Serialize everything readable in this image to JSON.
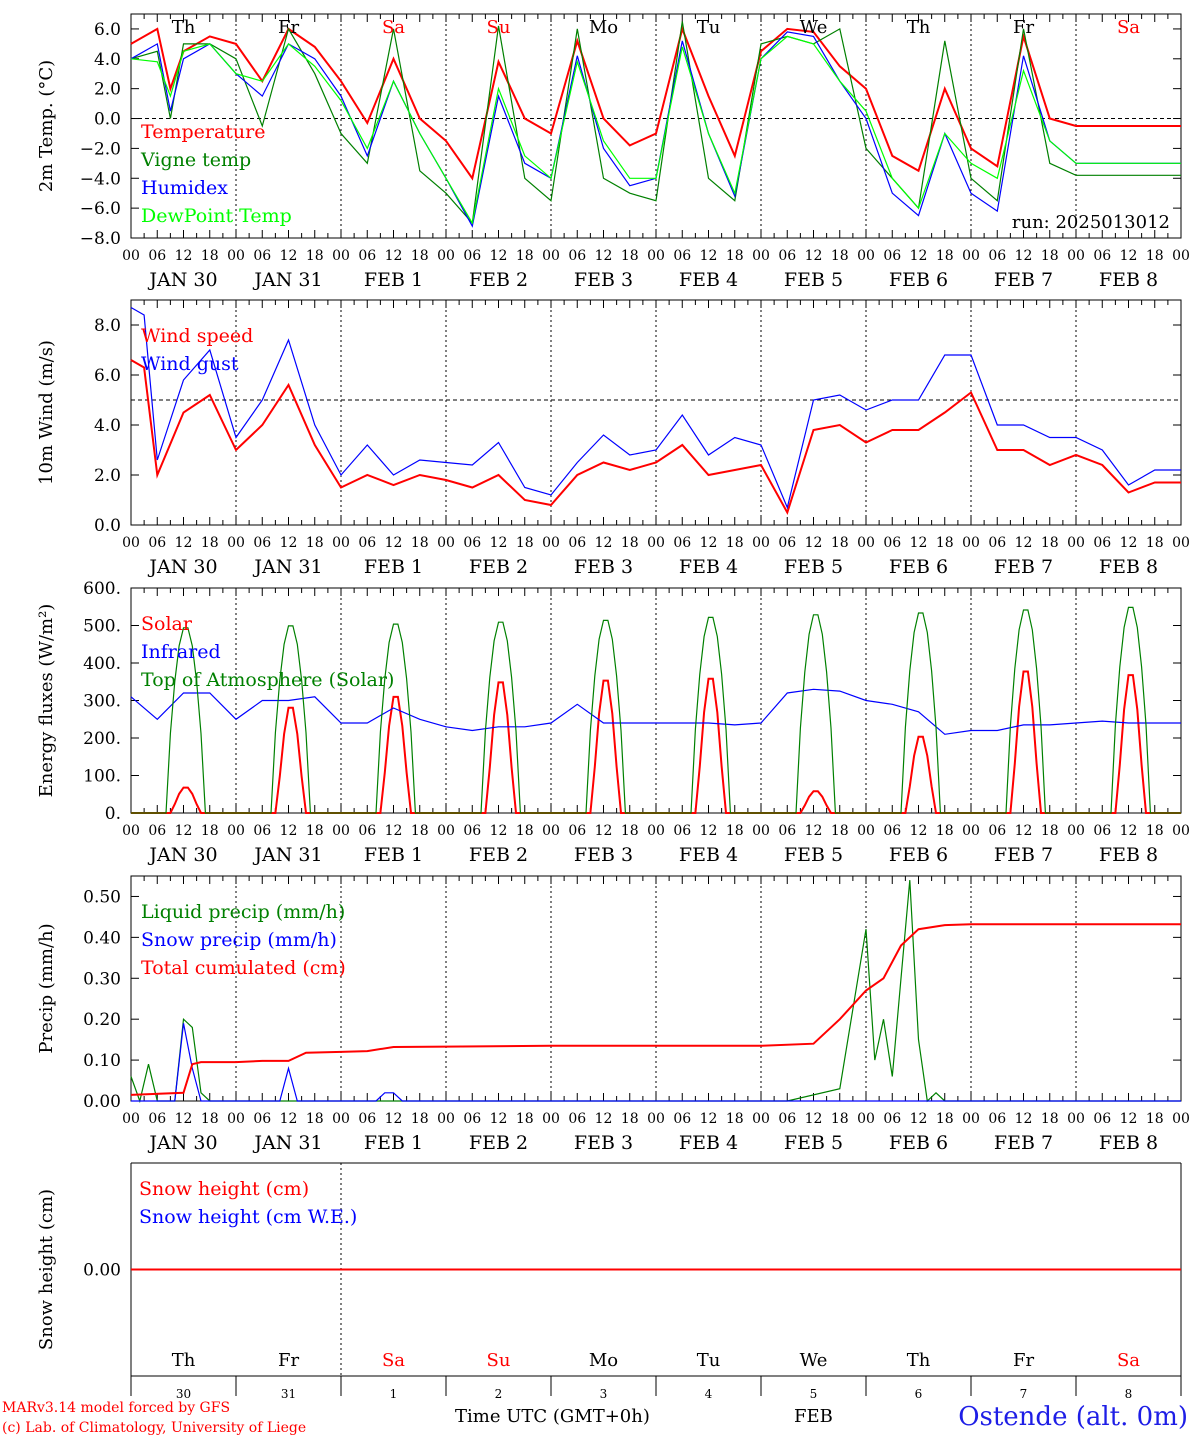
{
  "days": [
    "Th",
    "Fr",
    "Sa",
    "Su",
    "Mo",
    "Tu",
    "We",
    "Th",
    "Fr",
    "Sa"
  ],
  "weekend_flags": [
    false,
    false,
    true,
    true,
    false,
    false,
    false,
    false,
    false,
    true
  ],
  "date_labels": [
    "JAN 30",
    "JAN 31",
    "FEB  1",
    "FEB  2",
    "FEB  3",
    "FEB  4",
    "FEB  5",
    "FEB  6",
    "FEB  7",
    "FEB  8"
  ],
  "day_numbers": [
    "30",
    "31",
    "1",
    "2",
    "3",
    "4",
    "5",
    "6",
    "7",
    "8"
  ],
  "hour_ticks": [
    "00",
    "06",
    "12",
    "18"
  ],
  "end_tick": "00",
  "footer": {
    "credit_line1": "MARv3.14 model forced by GFS",
    "credit_line2": "(c) Lab. of Climatology, University of Liege",
    "time_label": "Time UTC (GMT+0h)",
    "month_label": "FEB",
    "station": "Ostende (alt. 0m)"
  },
  "chart_data": [
    {
      "type": "line",
      "ylabel": "2m Temp. (°C)",
      "ylim": [
        -8,
        7
      ],
      "yticks": [
        "6.0",
        "4.0",
        "2.0",
        "0.0",
        "−2.0",
        "−4.0",
        "−6.0",
        "−8.0"
      ],
      "ytick_values": [
        6,
        4,
        2,
        0,
        -2,
        -4,
        -6,
        -8
      ],
      "reference_line": 0,
      "annotation": "run: 2025013012",
      "x_unit": "hours since 30 Jan 00 UTC",
      "x_range": [
        0,
        240
      ],
      "series": [
        {
          "name": "Temperature",
          "color": "#ff0000",
          "x": [
            0,
            6,
            9,
            12,
            18,
            24,
            30,
            36,
            42,
            48,
            54,
            60,
            66,
            72,
            78,
            84,
            90,
            96,
            102,
            108,
            114,
            120,
            126,
            132,
            138,
            144,
            150,
            156,
            162,
            168,
            174,
            180,
            186,
            192,
            198,
            204,
            210,
            216,
            222,
            228,
            234,
            240
          ],
          "y": [
            5.0,
            6.0,
            2.0,
            4.5,
            5.5,
            5.0,
            2.5,
            6.0,
            4.8,
            2.5,
            -0.3,
            4.0,
            0.0,
            -1.5,
            -4.0,
            3.8,
            0.0,
            -1.0,
            5.2,
            0.0,
            -1.8,
            -1.0,
            6.0,
            1.5,
            -2.5,
            4.5,
            6.0,
            5.8,
            3.5,
            2.0,
            -2.5,
            -3.5,
            2.0,
            -2.0,
            -3.2,
            5.5,
            0.0,
            -0.5,
            -0.5,
            -0.5,
            -0.5,
            -0.5
          ]
        },
        {
          "name": "Vigne temp",
          "color": "#008000",
          "x": [
            0,
            6,
            9,
            12,
            18,
            24,
            30,
            36,
            42,
            48,
            54,
            60,
            66,
            72,
            78,
            84,
            90,
            96,
            102,
            108,
            114,
            120,
            126,
            132,
            138,
            144,
            150,
            156,
            162,
            168,
            174,
            180,
            186,
            192,
            198,
            204,
            210,
            216,
            222,
            228,
            234,
            240
          ],
          "y": [
            4.0,
            4.5,
            0.0,
            5.0,
            5.0,
            4.0,
            -0.5,
            6.0,
            3.0,
            -1.0,
            -3.0,
            6.0,
            -3.5,
            -5.0,
            -7.0,
            6.2,
            -4.0,
            -5.5,
            6.0,
            -4.0,
            -5.0,
            -5.5,
            6.5,
            -4.0,
            -5.5,
            5.0,
            5.5,
            5.0,
            6.0,
            -2.0,
            -4.0,
            -6.0,
            5.2,
            -4.0,
            -5.5,
            6.0,
            -3.0,
            -3.8,
            -3.8,
            -3.8,
            -3.8,
            -3.8
          ]
        },
        {
          "name": "Humidex",
          "color": "#0000ff",
          "x": [
            0,
            6,
            9,
            12,
            18,
            24,
            30,
            36,
            42,
            48,
            54,
            60,
            66,
            72,
            78,
            84,
            90,
            96,
            102,
            108,
            114,
            120,
            126,
            132,
            138,
            144,
            150,
            156,
            162,
            168,
            174,
            180,
            186,
            192,
            198,
            204,
            210,
            216,
            222,
            228,
            234,
            240
          ],
          "y": [
            4.0,
            5.0,
            0.5,
            4.0,
            5.0,
            3.0,
            1.5,
            5.0,
            4.0,
            1.5,
            -2.5,
            2.5,
            -1.0,
            -4.0,
            -7.2,
            1.5,
            -3.0,
            -4.0,
            4.2,
            -2.0,
            -4.5,
            -4.0,
            5.2,
            -1.0,
            -5.2,
            4.0,
            5.8,
            5.5,
            2.5,
            0.0,
            -5.0,
            -6.5,
            -1.0,
            -5.0,
            -6.2,
            4.2,
            -1.5,
            -3.0,
            -3.0,
            -3.0,
            -3.0,
            -3.0
          ]
        },
        {
          "name": "DewPoint Temp",
          "color": "#00ff00",
          "x": [
            0,
            6,
            9,
            12,
            18,
            24,
            30,
            36,
            42,
            48,
            54,
            60,
            66,
            72,
            78,
            84,
            90,
            96,
            102,
            108,
            114,
            120,
            126,
            132,
            138,
            144,
            150,
            156,
            162,
            168,
            174,
            180,
            186,
            192,
            198,
            204,
            210,
            216,
            222,
            228,
            234,
            240
          ],
          "y": [
            4.0,
            3.8,
            1.5,
            4.5,
            5.0,
            3.0,
            2.5,
            5.0,
            3.5,
            1.2,
            -2.0,
            2.5,
            -1.0,
            -4.0,
            -7.0,
            2.0,
            -2.5,
            -4.0,
            3.8,
            -1.5,
            -4.0,
            -4.0,
            4.8,
            -1.0,
            -5.0,
            4.0,
            5.5,
            5.0,
            2.5,
            0.5,
            -4.0,
            -6.0,
            -1.0,
            -3.0,
            -4.0,
            3.2,
            -1.5,
            -3.0,
            -3.0,
            -3.0,
            -3.0,
            -3.0
          ]
        }
      ]
    },
    {
      "type": "line",
      "ylabel": "10m Wind (m/s)",
      "ylim": [
        0,
        9
      ],
      "yticks": [
        "8.0",
        "6.0",
        "4.0",
        "2.0",
        "0.0"
      ],
      "ytick_values": [
        8,
        6,
        4,
        2,
        0
      ],
      "reference_line": 5,
      "x_range": [
        0,
        240
      ],
      "series": [
        {
          "name": "Wind speed",
          "color": "#ff0000",
          "x": [
            0,
            3,
            6,
            12,
            18,
            24,
            30,
            36,
            42,
            48,
            54,
            60,
            66,
            72,
            78,
            84,
            90,
            96,
            102,
            108,
            114,
            120,
            126,
            132,
            138,
            144,
            150,
            156,
            162,
            168,
            174,
            180,
            186,
            192,
            198,
            204,
            210,
            216,
            222,
            228,
            234,
            240
          ],
          "y": [
            6.6,
            6.3,
            2.0,
            4.5,
            5.2,
            3.0,
            4.0,
            5.6,
            3.2,
            1.5,
            2.0,
            1.6,
            2.0,
            1.8,
            1.5,
            2.0,
            1.0,
            0.8,
            2.0,
            2.5,
            2.2,
            2.5,
            3.2,
            2.0,
            2.2,
            2.4,
            0.5,
            3.8,
            4.0,
            3.3,
            3.8,
            3.8,
            4.5,
            5.3,
            3.0,
            3.0,
            2.4,
            2.8,
            2.4,
            1.3,
            1.7,
            1.7
          ]
        },
        {
          "name": "Wind gust",
          "color": "#0000ff",
          "x": [
            0,
            3,
            6,
            12,
            18,
            24,
            30,
            36,
            42,
            48,
            54,
            60,
            66,
            72,
            78,
            84,
            90,
            96,
            102,
            108,
            114,
            120,
            126,
            132,
            138,
            144,
            150,
            156,
            162,
            168,
            174,
            180,
            186,
            192,
            198,
            204,
            210,
            216,
            222,
            228,
            234,
            240
          ],
          "y": [
            8.7,
            8.4,
            2.6,
            5.8,
            7.0,
            3.5,
            5.0,
            7.4,
            4.0,
            2.0,
            3.2,
            2.0,
            2.6,
            2.5,
            2.4,
            3.3,
            1.5,
            1.2,
            2.5,
            3.6,
            2.8,
            3.0,
            4.4,
            2.8,
            3.5,
            3.2,
            0.7,
            5.0,
            5.2,
            4.6,
            5.0,
            5.0,
            6.8,
            6.8,
            4.0,
            4.0,
            3.5,
            3.5,
            3.0,
            1.6,
            2.2,
            2.2
          ]
        }
      ]
    },
    {
      "type": "line",
      "ylabel": "Energy fluxes (W/m²)",
      "ylim": [
        0,
        600
      ],
      "yticks": [
        "600.",
        "500.",
        "400.",
        "300.",
        "200.",
        "100.",
        "0."
      ],
      "ytick_values": [
        600,
        500,
        400,
        300,
        200,
        100,
        0
      ],
      "x_range": [
        0,
        240
      ],
      "series": [
        {
          "name": "Solar",
          "color": "#ff0000",
          "day_peaks": [
            70,
            290,
            320,
            360,
            365,
            370,
            60,
            210,
            390,
            380
          ]
        },
        {
          "name": "Infrared",
          "color": "#0000ff",
          "x": [
            0,
            6,
            12,
            18,
            24,
            30,
            36,
            42,
            48,
            54,
            60,
            66,
            72,
            78,
            84,
            90,
            96,
            102,
            108,
            114,
            120,
            126,
            132,
            138,
            144,
            150,
            156,
            162,
            168,
            174,
            180,
            186,
            192,
            198,
            204,
            210,
            216,
            222,
            228,
            234,
            240
          ],
          "y": [
            310,
            250,
            320,
            320,
            250,
            300,
            300,
            310,
            240,
            240,
            280,
            250,
            230,
            220,
            230,
            230,
            240,
            290,
            240,
            240,
            240,
            240,
            240,
            235,
            240,
            320,
            330,
            325,
            300,
            290,
            270,
            210,
            220,
            220,
            235,
            235,
            240,
            245,
            240,
            240,
            240
          ]
        },
        {
          "name": "Top of Atmosphere (Solar)",
          "color": "#008000",
          "day_peaks": [
            500,
            505,
            510,
            515,
            520,
            528,
            535,
            540,
            548,
            555
          ]
        }
      ]
    },
    {
      "type": "line",
      "ylabel": "Precip (mm/h)",
      "ylim": [
        0,
        0.55
      ],
      "yticks": [
        "0.50",
        "0.40",
        "0.30",
        "0.20",
        "0.10",
        "0.00"
      ],
      "ytick_values": [
        0.5,
        0.4,
        0.3,
        0.2,
        0.1,
        0
      ],
      "x_range": [
        0,
        240
      ],
      "series": [
        {
          "name": "Liquid precip (mm/h)",
          "color": "#008000",
          "x": [
            0,
            2,
            4,
            6,
            8,
            10,
            12,
            14,
            16,
            18,
            20,
            24,
            36,
            48,
            120,
            150,
            162,
            168,
            170,
            172,
            174,
            176,
            178,
            180,
            182,
            184,
            186,
            188,
            190,
            192,
            240
          ],
          "y": [
            0.06,
            0.0,
            0.09,
            0.0,
            0.0,
            0.0,
            0.2,
            0.18,
            0.02,
            0.0,
            0.0,
            0.0,
            0.0,
            0.0,
            0.0,
            0.0,
            0.03,
            0.42,
            0.1,
            0.2,
            0.06,
            0.3,
            0.54,
            0.15,
            0.0,
            0.02,
            0.0,
            0.0,
            0.0,
            0.0,
            0.0
          ]
        },
        {
          "name": "Snow precip (mm/h)",
          "color": "#0000ff",
          "x": [
            0,
            10,
            12,
            14,
            16,
            24,
            34,
            36,
            38,
            40,
            48,
            56,
            58,
            60,
            62,
            72,
            240
          ],
          "y": [
            0.0,
            0.0,
            0.19,
            0.08,
            0.0,
            0.0,
            0.0,
            0.08,
            0.0,
            0.0,
            0.0,
            0.0,
            0.02,
            0.02,
            0.0,
            0.0,
            0.0
          ]
        },
        {
          "name": "Total cumulated (cm)",
          "color": "#ff0000",
          "x": [
            0,
            12,
            14,
            16,
            24,
            30,
            36,
            40,
            48,
            54,
            60,
            72,
            96,
            120,
            144,
            156,
            162,
            168,
            172,
            176,
            180,
            186,
            192,
            240
          ],
          "y": [
            0.015,
            0.02,
            0.09,
            0.095,
            0.095,
            0.098,
            0.098,
            0.118,
            0.12,
            0.122,
            0.132,
            0.133,
            0.135,
            0.135,
            0.135,
            0.14,
            0.2,
            0.27,
            0.3,
            0.38,
            0.42,
            0.43,
            0.432,
            0.432
          ]
        }
      ]
    },
    {
      "type": "line",
      "ylabel": "Snow height (cm)",
      "ylim": [
        -1,
        1
      ],
      "yticks": [
        "0.00"
      ],
      "ytick_values": [
        0
      ],
      "x_range": [
        0,
        240
      ],
      "series": [
        {
          "name": "Snow height (cm)",
          "color": "#ff0000",
          "x": [
            0,
            240
          ],
          "y": [
            0,
            0
          ]
        },
        {
          "name": "Snow height (cm W.E.)",
          "color": "#0000ff",
          "x": [],
          "y": []
        }
      ]
    }
  ]
}
